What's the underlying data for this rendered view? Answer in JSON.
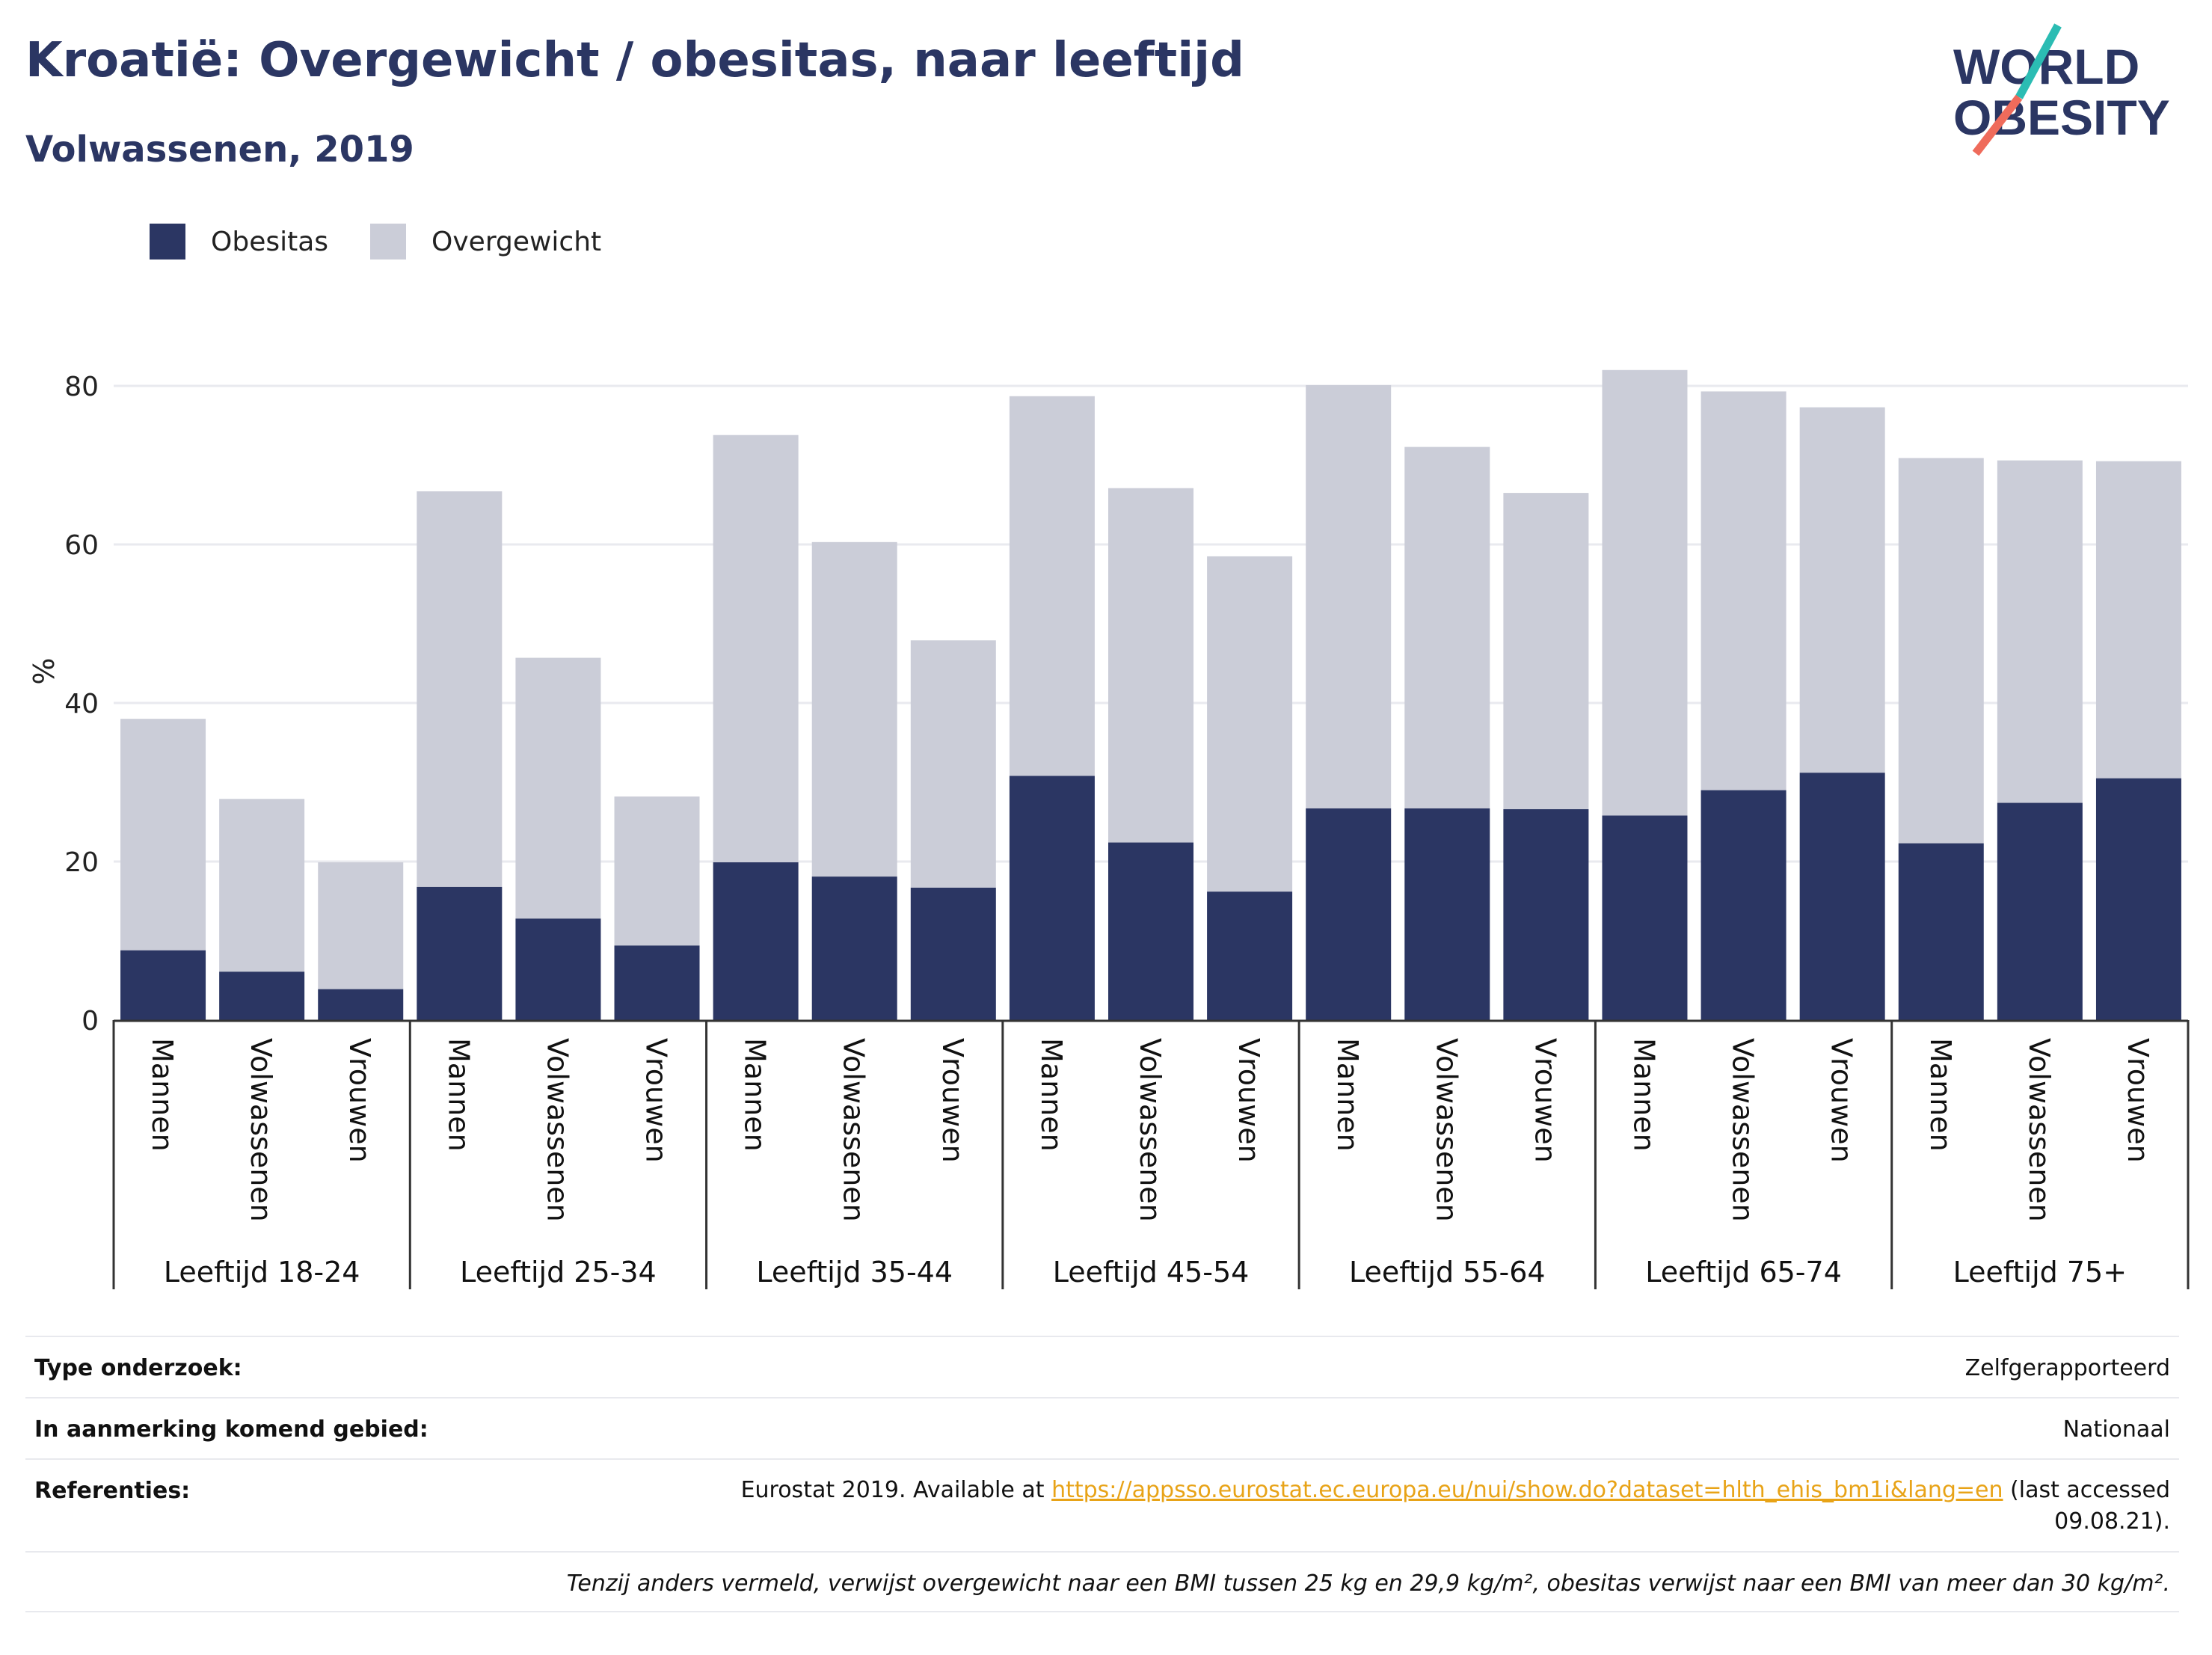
{
  "header": {
    "title": "Kroatië: Overgewicht / obesitas, naar leeftijd",
    "subtitle": "Volwassenen, 2019",
    "logo": {
      "line1": "WORLD",
      "line2": "OBESITY",
      "icon": "world-obesity-logo"
    }
  },
  "colors": {
    "obesitas": "#2b3663",
    "overgewicht": "#cbcdd8",
    "accent_teal": "#2bbcb3",
    "accent_coral": "#ef6b5b"
  },
  "chart_data": {
    "type": "bar",
    "stacked": true,
    "title": "Kroatië: Overgewicht / obesitas, naar leeftijd",
    "subtitle": "Volwassenen, 2019",
    "ylabel": "%",
    "ylim": [
      0,
      88
    ],
    "yticks": [
      0,
      20,
      40,
      60,
      80
    ],
    "grid": true,
    "legend_position": "top-left",
    "groups": [
      "Leeftijd 18-24",
      "Leeftijd 25-34",
      "Leeftijd 35-44",
      "Leeftijd 45-54",
      "Leeftijd 55-64",
      "Leeftijd 65-74",
      "Leeftijd 75+"
    ],
    "subcategories": [
      "Mannen",
      "Volwassenen",
      "Vrouwen"
    ],
    "series": [
      {
        "name": "Obesitas",
        "color": "#2b3663",
        "values": [
          8.8,
          6.1,
          3.9,
          16.8,
          12.8,
          9.4,
          19.9,
          18.1,
          16.7,
          30.8,
          22.4,
          16.2,
          26.7,
          26.7,
          26.6,
          25.8,
          29.0,
          31.2,
          22.3,
          27.4,
          30.5
        ]
      },
      {
        "name": "Overgewicht",
        "color": "#cbcdd8",
        "values": [
          29.2,
          21.8,
          16.0,
          49.9,
          32.9,
          18.8,
          53.9,
          42.2,
          31.2,
          47.9,
          44.7,
          42.3,
          53.4,
          45.6,
          39.9,
          56.2,
          50.3,
          46.1,
          48.6,
          43.2,
          40.0
        ]
      }
    ]
  },
  "info": {
    "type_label": "Type onderzoek:",
    "type_value": "Zelfgerapporteerd",
    "area_label": "In aanmerking komend gebied:",
    "area_value": "Nationaal",
    "ref_label": "Referenties:",
    "ref_prefix": "Eurostat 2019. Available at",
    "ref_link": "https://appsso.eurostat.ec.europa.eu/nui/show.do?dataset=hlth_ehis_bm1i&lang=en",
    "ref_suffix": "(last accessed 09.08.21).",
    "footnote": "Tenzij anders vermeld, verwijst overgewicht naar een BMI tussen 25 kg en 29,9 kg/m², obesitas verwijst naar een BMI van meer dan 30 kg/m²."
  }
}
